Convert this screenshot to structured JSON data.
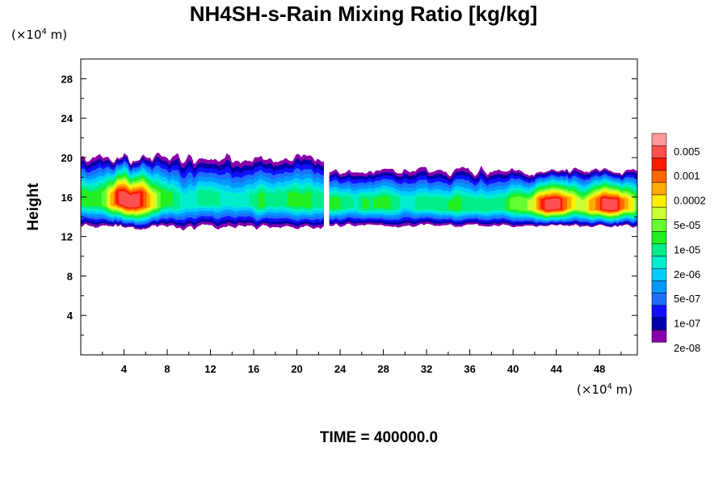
{
  "title": "NH4SH-s-Rain Mixing Ratio [kg/kg]",
  "time_label": "TIME = 400000.0",
  "chart_data": {
    "type": "heatmap",
    "title": "NH4SH-s-Rain Mixing Ratio [kg/kg]",
    "ylabel": "Height",
    "x_unit": {
      "prefix": "(×10",
      "exp": "4",
      "suffix": " m)"
    },
    "y_unit": {
      "prefix": "(×10",
      "exp": "4",
      "suffix": " m)"
    },
    "xlim": [
      0,
      51.5
    ],
    "ylim": [
      0,
      30
    ],
    "x_ticks": [
      4,
      8,
      12,
      16,
      20,
      24,
      28,
      32,
      36,
      40,
      44,
      48
    ],
    "y_ticks": [
      4,
      8,
      12,
      16,
      20,
      24,
      28
    ],
    "colorbar": {
      "labels": [
        "0.005",
        "0.001",
        "0.0002",
        "5e-05",
        "1e-05",
        "2e-06",
        "5e-07",
        "1e-07",
        "2e-08"
      ],
      "colors": [
        "#ff9999",
        "#ff5050",
        "#ff1a00",
        "#ff6600",
        "#ffaa00",
        "#ffee00",
        "#ccff33",
        "#66ff33",
        "#22ee22",
        "#00ee88",
        "#00eecc",
        "#00ccff",
        "#0099ff",
        "#1e6fff",
        "#1010ff",
        "#0000aa",
        "#8800aa"
      ]
    },
    "cloud_bands": [
      {
        "x_start": 0.0,
        "x_end": 22.5,
        "y_bottom": 12.8,
        "y_top": 20.3
      },
      {
        "x_start": 23.0,
        "x_end": 51.5,
        "y_bottom": 13.0,
        "y_top": 18.9
      }
    ],
    "peak_regions": [
      {
        "x": 4.5,
        "y": 14.3,
        "level": "0.001"
      },
      {
        "x": 43.5,
        "y": 14.0,
        "level": "0.0002"
      },
      {
        "x": 49.0,
        "y": 14.3,
        "level": "0.0002"
      }
    ]
  }
}
